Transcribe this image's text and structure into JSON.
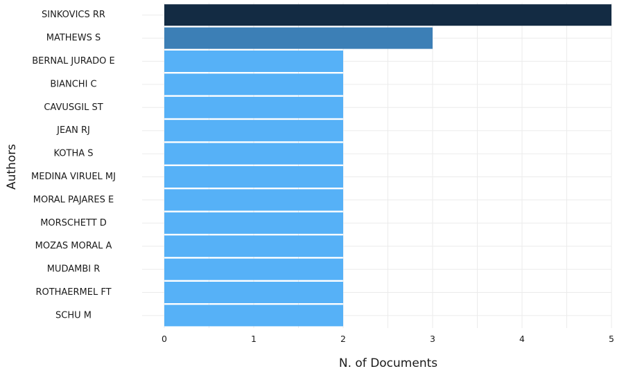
{
  "chart_data": {
    "type": "bar",
    "orientation": "horizontal",
    "title": "",
    "xlabel": "N. of Documents",
    "ylabel": "Authors",
    "xlim": [
      0,
      5
    ],
    "x_ticks": [
      "0",
      "1",
      "2",
      "3",
      "4",
      "5"
    ],
    "grid": true,
    "categories": [
      "SINKOVICS RR",
      "MATHEWS S",
      "BERNAL JURADO E",
      "BIANCHI C",
      "CAVUSGIL ST",
      "JEAN RJ",
      "KOTHA S",
      "MEDINA VIRUEL MJ",
      "MORAL PAJARES E",
      "MORSCHETT D",
      "MOZAS MORAL A",
      "MUDAMBI R",
      "ROTHAERMEL FT",
      "SCHU M"
    ],
    "values": [
      5,
      3,
      2,
      2,
      2,
      2,
      2,
      2,
      2,
      2,
      2,
      2,
      2,
      2
    ],
    "colors": {
      "5": "#132b43",
      "3": "#3c7fb6",
      "2": "#56b1f7",
      "gridline": "#ebebeb"
    }
  }
}
